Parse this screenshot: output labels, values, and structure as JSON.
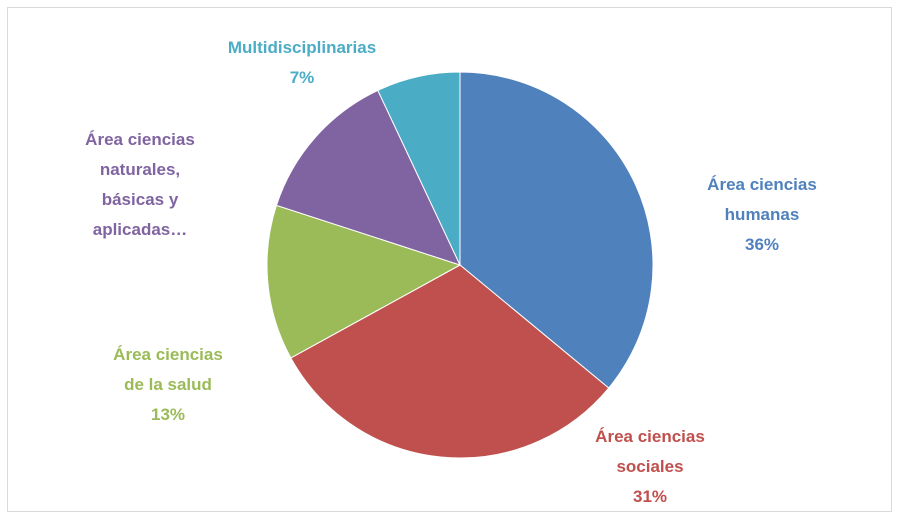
{
  "chart_data": {
    "type": "pie",
    "categories": [
      "Área ciencias humanas",
      "Área ciencias sociales",
      "Área ciencias de la salud",
      "Área ciencias naturales, básicas y aplicadas…",
      "Multidisciplinarias"
    ],
    "values": [
      36,
      31,
      13,
      13,
      7
    ],
    "value_labels": [
      "36%",
      "31%",
      "13%",
      null,
      "7%"
    ],
    "colors": [
      "#4f81bd",
      "#c0504d",
      "#9bbb59",
      "#8064a2",
      "#4bacc6"
    ]
  }
}
